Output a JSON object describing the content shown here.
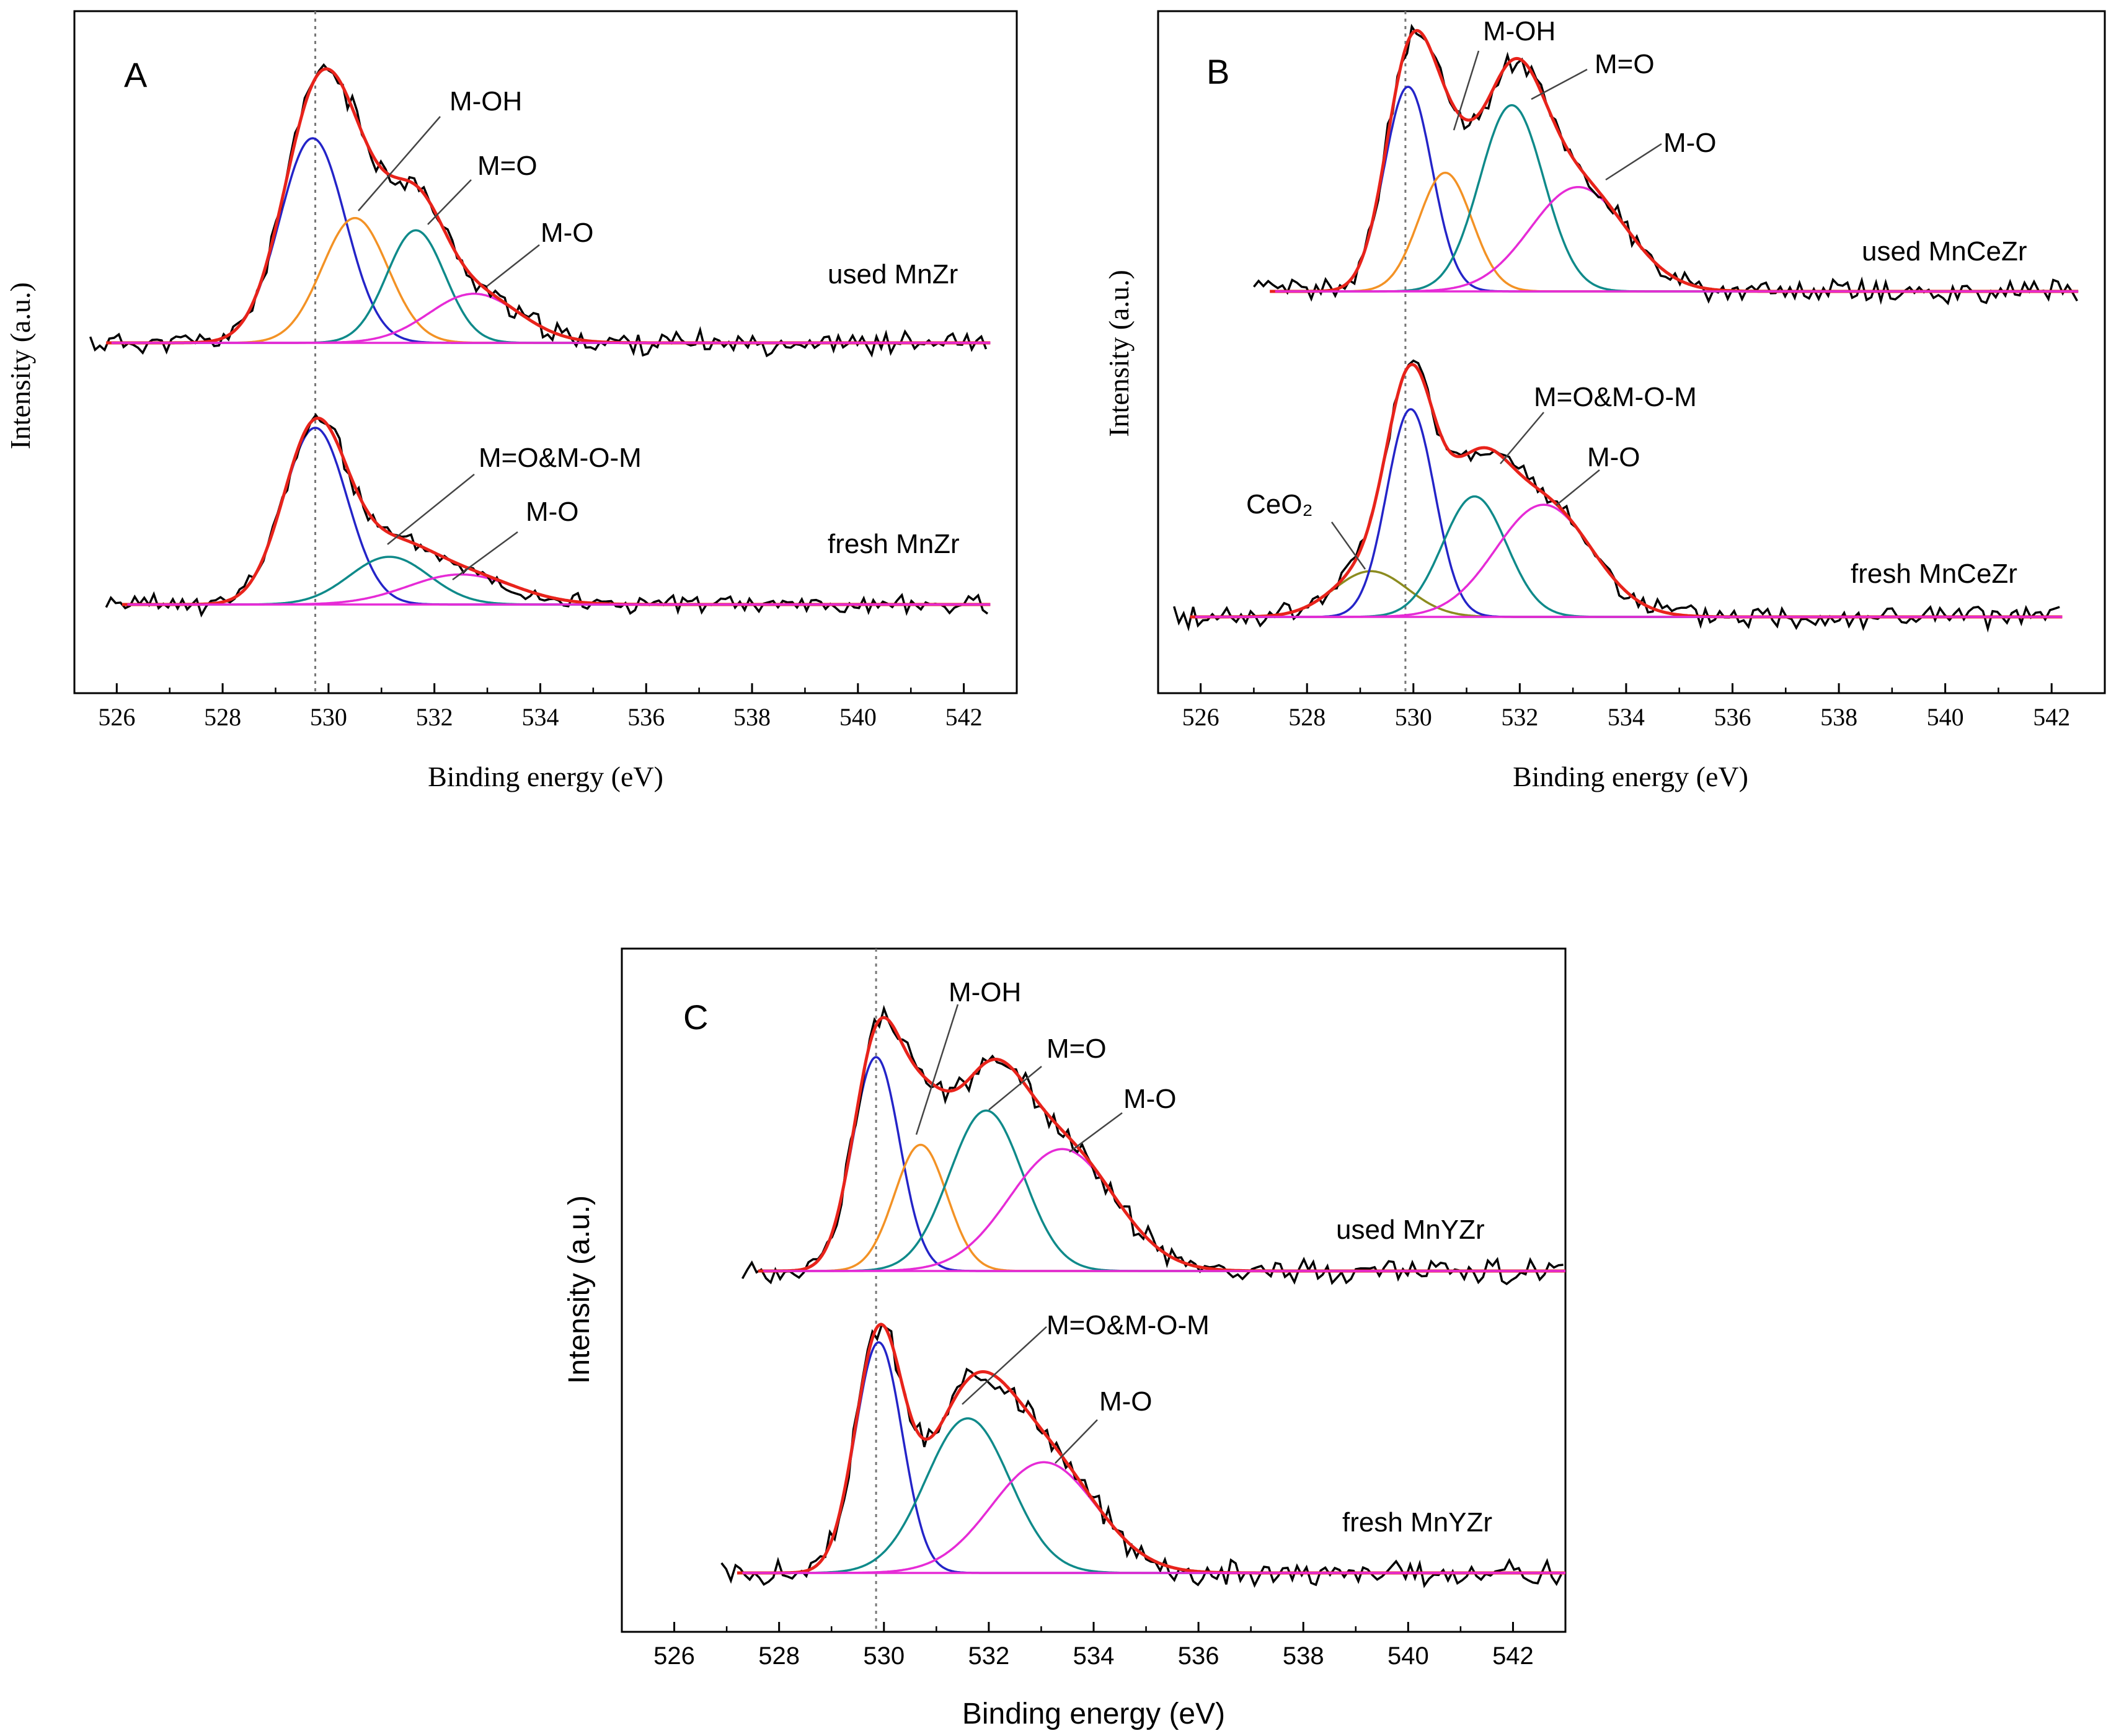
{
  "chart_data": [
    {
      "type": "line",
      "panel": "A",
      "xlabel": "Binding energy (eV)",
      "ylabel": "Intensity (a.u.)",
      "xlim": [
        525.2,
        543
      ],
      "xticks": [
        526,
        528,
        530,
        532,
        534,
        536,
        538,
        540,
        542
      ],
      "reference_line_x": 529.75,
      "colors": {
        "data": "#000000",
        "fit": "#e8231b",
        "M-lattice": "#2424c8",
        "M-OH": "#f39225",
        "M=O": "#0f8a8a",
        "M-O": "#e62bd6",
        "CeO2": "#8c8c1f"
      },
      "spectra": [
        {
          "name": "used MnZr",
          "label": "used MnZr",
          "range": [
            525.5,
            542.5
          ],
          "peaks": [
            {
              "component": "M-lattice",
              "center": 529.7,
              "sigma": 0.62,
              "height": 100
            },
            {
              "component": "M-OH",
              "label": "M-OH",
              "center": 530.5,
              "sigma": 0.62,
              "height": 61
            },
            {
              "component": "M=O",
              "label": "M=O",
              "center": 531.65,
              "sigma": 0.55,
              "height": 55
            },
            {
              "component": "M-O",
              "label": "M-O",
              "center": 532.75,
              "sigma": 0.85,
              "height": 24
            }
          ]
        },
        {
          "name": "fresh MnZr",
          "label": "fresh MnZr",
          "range": [
            525.8,
            542.5
          ],
          "peaks": [
            {
              "component": "M-lattice",
              "center": 529.75,
              "sigma": 0.6,
              "height": 100
            },
            {
              "component": "M=O&M-O-M",
              "label": "M=O&M-O-M",
              "center": 531.15,
              "sigma": 0.75,
              "height": 27
            },
            {
              "component": "M-O",
              "label": "M-O",
              "center": 532.5,
              "sigma": 1.0,
              "height": 17
            }
          ]
        }
      ]
    },
    {
      "type": "line",
      "panel": "B",
      "xlabel": "Binding energy (eV)",
      "ylabel": "Intensity (a.u.)",
      "xlim": [
        525.2,
        543
      ],
      "xticks": [
        526,
        528,
        530,
        532,
        534,
        536,
        538,
        540,
        542
      ],
      "reference_line_x": 529.85,
      "spectra": [
        {
          "name": "used MnCeZr",
          "label": "used MnCeZr",
          "range": [
            527.0,
            542.5
          ],
          "peaks": [
            {
              "component": "M-lattice",
              "center": 529.9,
              "sigma": 0.45,
              "height": 100
            },
            {
              "component": "M-OH",
              "label": "M-OH",
              "center": 530.6,
              "sigma": 0.5,
              "height": 58
            },
            {
              "component": "M=O",
              "label": "M=O",
              "center": 531.85,
              "sigma": 0.6,
              "height": 91
            },
            {
              "component": "M-O",
              "label": "M-O",
              "center": 533.1,
              "sigma": 0.9,
              "height": 51
            }
          ]
        },
        {
          "name": "fresh MnCeZr",
          "label": "fresh MnCeZr",
          "range": [
            525.5,
            542.2
          ],
          "peaks": [
            {
              "component": "CeO2",
              "label": "CeO₂",
              "center": 529.2,
              "sigma": 0.7,
              "height": 22
            },
            {
              "component": "M-lattice",
              "center": 529.95,
              "sigma": 0.45,
              "height": 100
            },
            {
              "component": "M=O&M-O-M",
              "label": "M=O&M-O-M",
              "center": 531.15,
              "sigma": 0.6,
              "height": 58
            },
            {
              "component": "M-O",
              "label": "M-O",
              "center": 532.45,
              "sigma": 0.9,
              "height": 54
            }
          ]
        }
      ]
    },
    {
      "type": "line",
      "panel": "C",
      "xlabel": "Binding energy (eV)",
      "ylabel": "Intensity (a.u.)",
      "xlim": [
        525,
        543
      ],
      "xticks": [
        526,
        528,
        530,
        532,
        534,
        536,
        538,
        540,
        542
      ],
      "reference_line_x": 529.85,
      "spectra": [
        {
          "name": "used MnYZr",
          "label": "used MnYZr",
          "range": [
            527.3,
            543
          ],
          "peaks": [
            {
              "component": "M-lattice",
              "center": 529.85,
              "sigma": 0.45,
              "height": 100
            },
            {
              "component": "M-OH",
              "label": "M-OH",
              "center": 530.7,
              "sigma": 0.5,
              "height": 59
            },
            {
              "component": "M=O",
              "label": "M=O",
              "center": 531.95,
              "sigma": 0.7,
              "height": 75
            },
            {
              "component": "M-O",
              "label": "M-O",
              "center": 533.4,
              "sigma": 1.0,
              "height": 57
            }
          ]
        },
        {
          "name": "fresh MnYZr",
          "label": "fresh MnYZr",
          "range": [
            526.9,
            543
          ],
          "peaks": [
            {
              "component": "M-lattice",
              "center": 529.9,
              "sigma": 0.45,
              "height": 100
            },
            {
              "component": "M=O&M-O-M",
              "label": "M=O&M-O-M",
              "center": 531.6,
              "sigma": 0.8,
              "height": 67
            },
            {
              "component": "M-O",
              "label": "M-O",
              "center": 533.05,
              "sigma": 1.0,
              "height": 48
            }
          ]
        }
      ]
    }
  ]
}
